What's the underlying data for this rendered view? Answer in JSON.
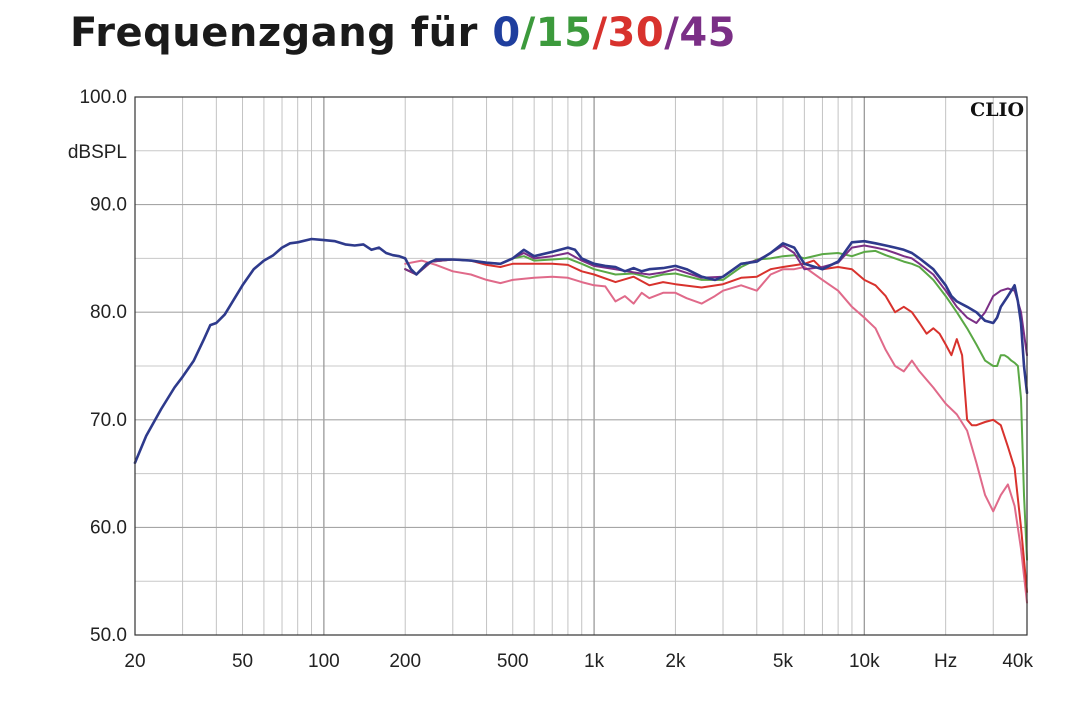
{
  "chart_data": {
    "type": "line",
    "title_prefix": "Frequenzgang für ",
    "title_parts": [
      {
        "text": "0",
        "color": "#1f3e9e"
      },
      {
        "text": "/",
        "color": "#3c9a3c"
      },
      {
        "text": "15",
        "color": "#3c9a3c"
      },
      {
        "text": "/",
        "color": "#d8322d"
      },
      {
        "text": "30",
        "color": "#d8322d"
      },
      {
        "text": "/",
        "color": "#7b2f86"
      },
      {
        "text": "45",
        "color": "#7b2f86"
      }
    ],
    "ylabel": "dBSPL",
    "xunit": "Hz",
    "brand": "CLIO",
    "xscale": "log",
    "xlim": [
      20,
      40000
    ],
    "ylim": [
      50,
      100
    ],
    "grid": true,
    "y_ticks": [
      {
        "value": 50,
        "label": "50.0"
      },
      {
        "value": 60,
        "label": "60.0"
      },
      {
        "value": 70,
        "label": "70.0"
      },
      {
        "value": 80,
        "label": "80.0"
      },
      {
        "value": 90,
        "label": "90.0"
      },
      {
        "value": 100,
        "label": "100.0"
      }
    ],
    "x_ticks": [
      {
        "value": 20,
        "label": "20"
      },
      {
        "value": 50,
        "label": "50"
      },
      {
        "value": 100,
        "label": "100"
      },
      {
        "value": 200,
        "label": "200"
      },
      {
        "value": 500,
        "label": "500"
      },
      {
        "value": 1000,
        "label": "1k"
      },
      {
        "value": 2000,
        "label": "2k"
      },
      {
        "value": 5000,
        "label": "5k"
      },
      {
        "value": 10000,
        "label": "10k"
      },
      {
        "value": 40000,
        "label": "40k"
      }
    ],
    "series": [
      {
        "color": "#e06a8a",
        "points": [
          [
            200,
            84.5
          ],
          [
            230,
            84.8
          ],
          [
            260,
            84.4
          ],
          [
            300,
            83.8
          ],
          [
            350,
            83.5
          ],
          [
            400,
            83
          ],
          [
            450,
            82.7
          ],
          [
            500,
            83
          ],
          [
            600,
            83.2
          ],
          [
            700,
            83.3
          ],
          [
            800,
            83.2
          ],
          [
            900,
            82.8
          ],
          [
            1000,
            82.5
          ],
          [
            1100,
            82.4
          ],
          [
            1200,
            81
          ],
          [
            1300,
            81.5
          ],
          [
            1400,
            80.8
          ],
          [
            1500,
            81.8
          ],
          [
            1600,
            81.3
          ],
          [
            1800,
            81.8
          ],
          [
            2000,
            81.8
          ],
          [
            2200,
            81.3
          ],
          [
            2500,
            80.8
          ],
          [
            2800,
            81.5
          ],
          [
            3000,
            82
          ],
          [
            3500,
            82.5
          ],
          [
            4000,
            82
          ],
          [
            4500,
            83.5
          ],
          [
            5000,
            84
          ],
          [
            5500,
            84
          ],
          [
            6000,
            84.2
          ],
          [
            7000,
            83
          ],
          [
            8000,
            82
          ],
          [
            9000,
            80.5
          ],
          [
            10000,
            79.5
          ],
          [
            11000,
            78.5
          ],
          [
            12000,
            76.5
          ],
          [
            13000,
            75
          ],
          [
            14000,
            74.5
          ],
          [
            15000,
            75.5
          ],
          [
            16000,
            74.5
          ],
          [
            18000,
            73
          ],
          [
            20000,
            71.5
          ],
          [
            22000,
            70.5
          ],
          [
            24000,
            69
          ],
          [
            26000,
            66
          ],
          [
            28000,
            63
          ],
          [
            30000,
            61.5
          ],
          [
            32000,
            63
          ],
          [
            34000,
            64
          ],
          [
            36000,
            62
          ],
          [
            38000,
            58
          ],
          [
            40000,
            53
          ]
        ]
      },
      {
        "color": "#d8322d",
        "points": [
          [
            200,
            84
          ],
          [
            220,
            83.5
          ],
          [
            250,
            84.7
          ],
          [
            300,
            84.9
          ],
          [
            350,
            84.8
          ],
          [
            400,
            84.4
          ],
          [
            450,
            84.2
          ],
          [
            500,
            84.5
          ],
          [
            600,
            84.5
          ],
          [
            700,
            84.5
          ],
          [
            800,
            84.4
          ],
          [
            900,
            83.8
          ],
          [
            1000,
            83.5
          ],
          [
            1200,
            82.8
          ],
          [
            1400,
            83.3
          ],
          [
            1600,
            82.5
          ],
          [
            1800,
            82.8
          ],
          [
            2000,
            82.6
          ],
          [
            2500,
            82.3
          ],
          [
            3000,
            82.6
          ],
          [
            3500,
            83.2
          ],
          [
            4000,
            83.3
          ],
          [
            4500,
            84
          ],
          [
            5000,
            84.2
          ],
          [
            6000,
            84.5
          ],
          [
            6500,
            84.8
          ],
          [
            7000,
            84
          ],
          [
            8000,
            84.2
          ],
          [
            9000,
            84
          ],
          [
            10000,
            83
          ],
          [
            11000,
            82.5
          ],
          [
            12000,
            81.5
          ],
          [
            13000,
            80
          ],
          [
            14000,
            80.5
          ],
          [
            15000,
            80
          ],
          [
            16000,
            79
          ],
          [
            17000,
            78
          ],
          [
            18000,
            78.5
          ],
          [
            19000,
            78
          ],
          [
            20000,
            77
          ],
          [
            21000,
            76
          ],
          [
            22000,
            77.5
          ],
          [
            23000,
            76
          ],
          [
            24000,
            70
          ],
          [
            25000,
            69.5
          ],
          [
            26000,
            69.5
          ],
          [
            28000,
            69.8
          ],
          [
            30000,
            70
          ],
          [
            32000,
            69.5
          ],
          [
            34000,
            67.5
          ],
          [
            36000,
            65.5
          ],
          [
            38000,
            60
          ],
          [
            40000,
            54
          ]
        ]
      },
      {
        "color": "#5aa845",
        "points": [
          [
            200,
            84
          ],
          [
            220,
            83.5
          ],
          [
            250,
            84.7
          ],
          [
            300,
            84.9
          ],
          [
            350,
            84.8
          ],
          [
            400,
            84.6
          ],
          [
            450,
            84.5
          ],
          [
            500,
            85
          ],
          [
            550,
            85.2
          ],
          [
            600,
            84.8
          ],
          [
            700,
            84.9
          ],
          [
            800,
            85
          ],
          [
            900,
            84.5
          ],
          [
            1000,
            84
          ],
          [
            1200,
            83.5
          ],
          [
            1400,
            83.6
          ],
          [
            1600,
            83.2
          ],
          [
            1800,
            83.5
          ],
          [
            2000,
            83.6
          ],
          [
            2500,
            83
          ],
          [
            3000,
            83
          ],
          [
            3500,
            84.2
          ],
          [
            4000,
            84.9
          ],
          [
            4500,
            85
          ],
          [
            5000,
            85.2
          ],
          [
            5500,
            85.3
          ],
          [
            6000,
            85
          ],
          [
            7000,
            85.4
          ],
          [
            8000,
            85.5
          ],
          [
            9000,
            85.2
          ],
          [
            10000,
            85.6
          ],
          [
            11000,
            85.7
          ],
          [
            12000,
            85.3
          ],
          [
            13000,
            85
          ],
          [
            14000,
            84.7
          ],
          [
            15000,
            84.5
          ],
          [
            16000,
            84.2
          ],
          [
            18000,
            83
          ],
          [
            20000,
            81.5
          ],
          [
            22000,
            80
          ],
          [
            24000,
            78.5
          ],
          [
            26000,
            77
          ],
          [
            28000,
            75.5
          ],
          [
            30000,
            75
          ],
          [
            31000,
            75
          ],
          [
            32000,
            76
          ],
          [
            33000,
            76
          ],
          [
            34000,
            75.8
          ],
          [
            35000,
            75.5
          ],
          [
            36000,
            75.3
          ],
          [
            37000,
            75
          ],
          [
            38000,
            72
          ],
          [
            39000,
            63
          ],
          [
            40000,
            57
          ]
        ]
      },
      {
        "color": "#7b2f86",
        "points": [
          [
            200,
            84
          ],
          [
            220,
            83.5
          ],
          [
            250,
            84.7
          ],
          [
            300,
            84.9
          ],
          [
            350,
            84.8
          ],
          [
            400,
            84.6
          ],
          [
            450,
            84.5
          ],
          [
            500,
            85
          ],
          [
            550,
            85.5
          ],
          [
            600,
            85
          ],
          [
            700,
            85.2
          ],
          [
            800,
            85.5
          ],
          [
            900,
            84.8
          ],
          [
            1000,
            84.3
          ],
          [
            1200,
            84
          ],
          [
            1400,
            83.7
          ],
          [
            1600,
            83.5
          ],
          [
            1800,
            83.7
          ],
          [
            2000,
            84
          ],
          [
            2500,
            83.2
          ],
          [
            3000,
            83.3
          ],
          [
            3500,
            84.5
          ],
          [
            4000,
            84.8
          ],
          [
            4500,
            85.5
          ],
          [
            5000,
            86.2
          ],
          [
            5500,
            85.5
          ],
          [
            6000,
            84
          ],
          [
            7000,
            84.2
          ],
          [
            8000,
            84.6
          ],
          [
            9000,
            86
          ],
          [
            10000,
            86.2
          ],
          [
            11000,
            86
          ],
          [
            12000,
            85.8
          ],
          [
            13000,
            85.5
          ],
          [
            14000,
            85.2
          ],
          [
            15000,
            85
          ],
          [
            16000,
            84.5
          ],
          [
            18000,
            83.5
          ],
          [
            20000,
            82
          ],
          [
            22000,
            80.5
          ],
          [
            24000,
            79.5
          ],
          [
            26000,
            79
          ],
          [
            28000,
            80
          ],
          [
            30000,
            81.5
          ],
          [
            32000,
            82
          ],
          [
            34000,
            82.2
          ],
          [
            36000,
            82
          ],
          [
            38000,
            80
          ],
          [
            40000,
            76
          ]
        ]
      },
      {
        "color": "#2e3a8c",
        "points": [
          [
            20,
            66
          ],
          [
            22,
            68.5
          ],
          [
            25,
            71
          ],
          [
            28,
            73
          ],
          [
            30,
            74
          ],
          [
            33,
            75.5
          ],
          [
            36,
            77.5
          ],
          [
            38,
            78.8
          ],
          [
            40,
            79
          ],
          [
            43,
            79.8
          ],
          [
            46,
            81
          ],
          [
            50,
            82.5
          ],
          [
            55,
            84
          ],
          [
            60,
            84.8
          ],
          [
            65,
            85.3
          ],
          [
            70,
            86
          ],
          [
            75,
            86.4
          ],
          [
            80,
            86.5
          ],
          [
            90,
            86.8
          ],
          [
            100,
            86.7
          ],
          [
            110,
            86.6
          ],
          [
            120,
            86.3
          ],
          [
            130,
            86.2
          ],
          [
            140,
            86.3
          ],
          [
            150,
            85.8
          ],
          [
            160,
            86
          ],
          [
            170,
            85.5
          ],
          [
            180,
            85.3
          ],
          [
            190,
            85.2
          ],
          [
            200,
            85
          ],
          [
            210,
            84
          ],
          [
            220,
            83.5
          ],
          [
            240,
            84.5
          ],
          [
            260,
            84.9
          ],
          [
            300,
            84.9
          ],
          [
            350,
            84.8
          ],
          [
            400,
            84.6
          ],
          [
            450,
            84.5
          ],
          [
            500,
            85
          ],
          [
            550,
            85.8
          ],
          [
            600,
            85.2
          ],
          [
            700,
            85.6
          ],
          [
            800,
            86
          ],
          [
            850,
            85.8
          ],
          [
            900,
            85
          ],
          [
            1000,
            84.5
          ],
          [
            1100,
            84.3
          ],
          [
            1200,
            84.2
          ],
          [
            1300,
            83.8
          ],
          [
            1400,
            84.1
          ],
          [
            1500,
            83.8
          ],
          [
            1600,
            84
          ],
          [
            1800,
            84.1
          ],
          [
            2000,
            84.3
          ],
          [
            2200,
            84
          ],
          [
            2500,
            83.3
          ],
          [
            2800,
            83
          ],
          [
            3000,
            83.3
          ],
          [
            3500,
            84.5
          ],
          [
            4000,
            84.7
          ],
          [
            4500,
            85.5
          ],
          [
            5000,
            86.4
          ],
          [
            5500,
            86
          ],
          [
            6000,
            84.5
          ],
          [
            7000,
            84
          ],
          [
            8000,
            84.7
          ],
          [
            9000,
            86.5
          ],
          [
            10000,
            86.6
          ],
          [
            11000,
            86.4
          ],
          [
            12000,
            86.2
          ],
          [
            13000,
            86
          ],
          [
            14000,
            85.8
          ],
          [
            15000,
            85.5
          ],
          [
            16000,
            85
          ],
          [
            18000,
            84
          ],
          [
            20000,
            82.5
          ],
          [
            21000,
            81.5
          ],
          [
            22000,
            81
          ],
          [
            24000,
            80.5
          ],
          [
            26000,
            80
          ],
          [
            28000,
            79.2
          ],
          [
            30000,
            79
          ],
          [
            31000,
            79.5
          ],
          [
            32000,
            80.5
          ],
          [
            34000,
            81.5
          ],
          [
            35000,
            82
          ],
          [
            36000,
            82.5
          ],
          [
            37000,
            81
          ],
          [
            38000,
            79
          ],
          [
            39000,
            75
          ],
          [
            40000,
            72.5
          ]
        ]
      }
    ]
  }
}
